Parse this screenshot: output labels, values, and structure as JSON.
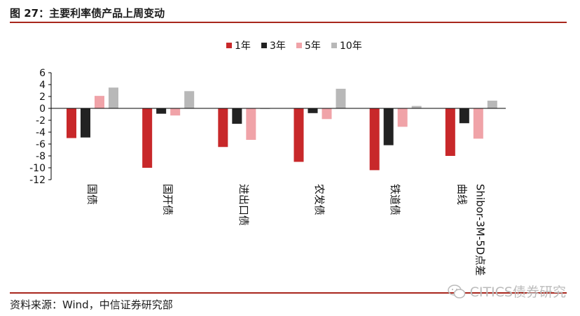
{
  "figure_title": "图 27：主要利率债产品上周变动",
  "source_note": "资料来源：Wind，中信证券研究部",
  "watermark_text": "CITICS债券研究",
  "colors": {
    "accent_rule": "#a8261c",
    "series": [
      "#c8282a",
      "#222222",
      "#f0a3a8",
      "#b8b8b8"
    ]
  },
  "chart_data": {
    "type": "bar",
    "categories": [
      "国债",
      "国开债",
      "进出口债",
      "农发债",
      "铁道债",
      "Shibor-3M-5D点差曲线"
    ],
    "category_display": [
      [
        "国债"
      ],
      [
        "国开债"
      ],
      [
        "进出口债"
      ],
      [
        "农发债"
      ],
      [
        "铁道债"
      ],
      [
        "Shibor-3M-5D点差",
        "曲线"
      ]
    ],
    "series": [
      {
        "name": "1年",
        "values": [
          -5.0,
          -10.0,
          -6.5,
          -9.0,
          -10.4,
          -8.0
        ]
      },
      {
        "name": "3年",
        "values": [
          -4.9,
          -0.9,
          -2.6,
          -0.8,
          -6.2,
          -2.5
        ]
      },
      {
        "name": "5年",
        "values": [
          2.1,
          -1.2,
          -5.3,
          -1.8,
          -3.1,
          -5.1
        ]
      },
      {
        "name": "10年",
        "values": [
          3.5,
          2.9,
          -0.1,
          3.3,
          0.4,
          1.3
        ]
      }
    ],
    "ylim": [
      -12,
      6
    ],
    "yticks": [
      6,
      4,
      2,
      0,
      -2,
      -4,
      -6,
      -8,
      -10,
      -12
    ],
    "legend_position": "top-center",
    "grid": false
  }
}
